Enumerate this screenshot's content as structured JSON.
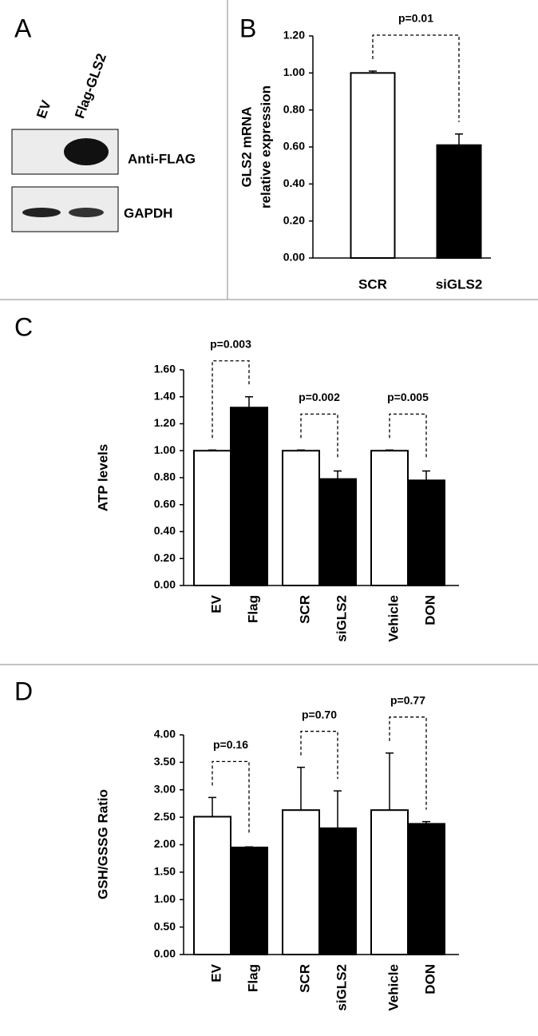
{
  "blot": {
    "panel": "A",
    "lanes": [
      "EV",
      "Flag-GLS2"
    ],
    "bands": [
      "Anti-FLAG",
      "GAPDH"
    ]
  },
  "chart_data": [
    {
      "panel": "B",
      "type": "bar",
      "y_label": [
        "GLS2 mRNA",
        "relative expression"
      ],
      "categories": [
        "SCR",
        "siGLS2"
      ],
      "values": [
        1.0,
        0.61
      ],
      "errors": [
        0.01,
        0.06
      ],
      "colors": [
        "#ffffff",
        "#000000"
      ],
      "ylim": [
        0,
        1.2
      ],
      "yticks": [
        {
          "value": 0,
          "label": "0.00"
        },
        {
          "value": 0.2,
          "label": "0.20"
        },
        {
          "value": 0.4,
          "label": "0.40"
        },
        {
          "value": 0.6,
          "label": "0.60"
        },
        {
          "value": 0.8,
          "label": "0.80"
        },
        {
          "value": 1.0,
          "label": "1.00"
        },
        {
          "value": 1.2,
          "label": "1.20"
        }
      ],
      "annotations": [
        "p=0.01"
      ]
    },
    {
      "panel": "C",
      "type": "bar",
      "y_label": [
        "ATP levels"
      ],
      "categories": [
        "EV",
        "Flag",
        "SCR",
        "siGLS2",
        "Vehicle",
        "DON"
      ],
      "values": [
        1.0,
        1.32,
        1.0,
        0.79,
        1.0,
        0.78
      ],
      "errors": [
        0.005,
        0.08,
        0.005,
        0.06,
        0.005,
        0.07
      ],
      "colors": [
        "#ffffff",
        "#000000",
        "#ffffff",
        "#000000",
        "#ffffff",
        "#000000"
      ],
      "ylim": [
        0,
        1.6
      ],
      "yticks": [
        {
          "value": 0,
          "label": "0.00"
        },
        {
          "value": 0.2,
          "label": "0.20"
        },
        {
          "value": 0.4,
          "label": "0.40"
        },
        {
          "value": 0.6,
          "label": "0.60"
        },
        {
          "value": 0.8,
          "label": "0.80"
        },
        {
          "value": 1.0,
          "label": "1.00"
        },
        {
          "value": 1.2,
          "label": "1.20"
        },
        {
          "value": 1.4,
          "label": "1.40"
        },
        {
          "value": 1.6,
          "label": "1.60"
        }
      ],
      "annotations": [
        "p=0.003",
        "p=0.002",
        "p=0.005"
      ]
    },
    {
      "panel": "D",
      "type": "bar",
      "y_label": [
        "GSH/GSSG Ratio"
      ],
      "categories": [
        "EV",
        "Flag",
        "SCR",
        "siGLS2",
        "Vehicle",
        "DON"
      ],
      "values": [
        2.51,
        1.95,
        2.63,
        2.3,
        2.63,
        2.38
      ],
      "errors": [
        0.35,
        0.01,
        0.78,
        0.68,
        1.04,
        0.04
      ],
      "colors": [
        "#ffffff",
        "#000000",
        "#ffffff",
        "#000000",
        "#ffffff",
        "#000000"
      ],
      "ylim": [
        0,
        4
      ],
      "yticks": [
        {
          "value": 0,
          "label": "0.00"
        },
        {
          "value": 0.5,
          "label": "0.50"
        },
        {
          "value": 1.0,
          "label": "1.00"
        },
        {
          "value": 1.5,
          "label": "1.50"
        },
        {
          "value": 2.0,
          "label": "2.00"
        },
        {
          "value": 2.5,
          "label": "2.50"
        },
        {
          "value": 3.0,
          "label": "3.00"
        },
        {
          "value": 3.5,
          "label": "3.50"
        },
        {
          "value": 4.0,
          "label": "4.00"
        }
      ],
      "annotations": [
        "p=0.16",
        "p=0.70",
        "p=0.77"
      ]
    }
  ]
}
